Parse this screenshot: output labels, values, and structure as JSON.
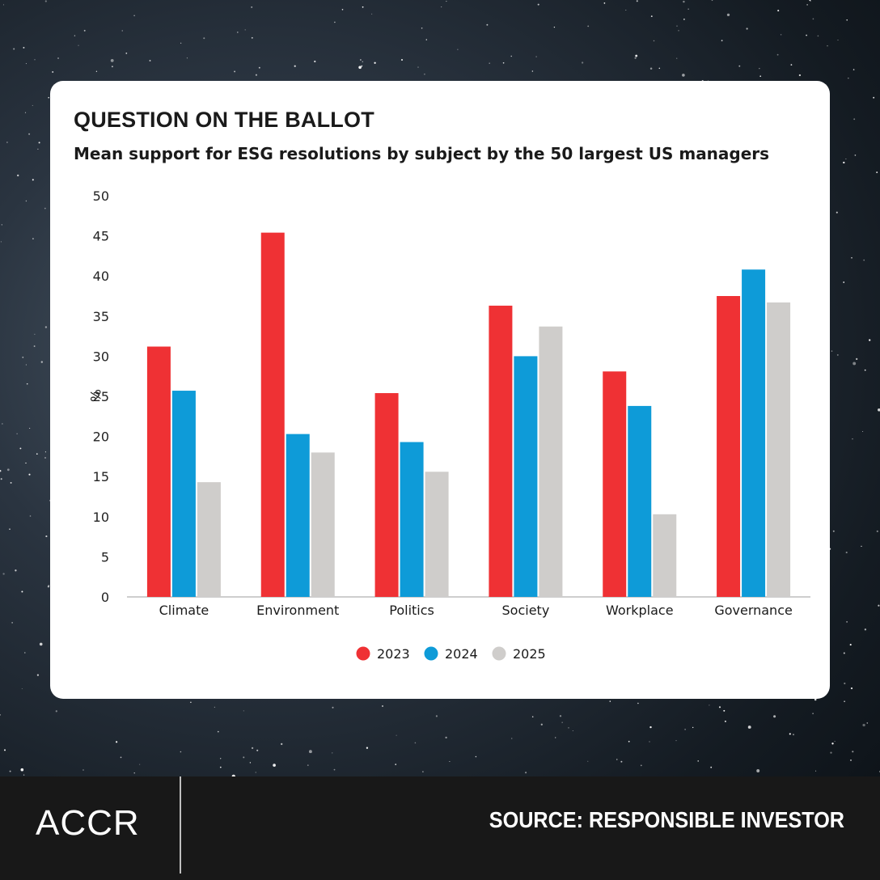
{
  "header": {
    "title": "QUESTION ON THE BALLOT",
    "subtitle": "Mean support for ESG resolutions by subject by the 50 largest US managers"
  },
  "footer": {
    "logo": "ACCR",
    "source": "SOURCE: RESPONSIBLE INVESTOR"
  },
  "chart_data": {
    "type": "bar",
    "title": "QUESTION ON THE BALLOT",
    "subtitle": "Mean support for ESG resolutions by subject by the 50 largest US managers",
    "xlabel": "",
    "ylabel": "%",
    "ylim": [
      0,
      50
    ],
    "yticks": [
      0,
      5,
      10,
      15,
      20,
      25,
      30,
      35,
      40,
      45,
      50
    ],
    "grid": false,
    "legend": "bottom-center",
    "categories": [
      "Climate",
      "Environment",
      "Politics",
      "Society",
      "Workplace",
      "Governance"
    ],
    "series": [
      {
        "name": "2023",
        "color": "#ef3134",
        "values": [
          31.2,
          45.4,
          25.4,
          36.3,
          28.1,
          37.5
        ]
      },
      {
        "name": "2024",
        "color": "#0e9bd8",
        "values": [
          25.7,
          20.3,
          19.3,
          30.0,
          23.8,
          40.8
        ]
      },
      {
        "name": "2025",
        "color": "#cfcdcb",
        "values": [
          14.3,
          18.0,
          15.6,
          33.7,
          10.3,
          36.7
        ]
      }
    ]
  }
}
